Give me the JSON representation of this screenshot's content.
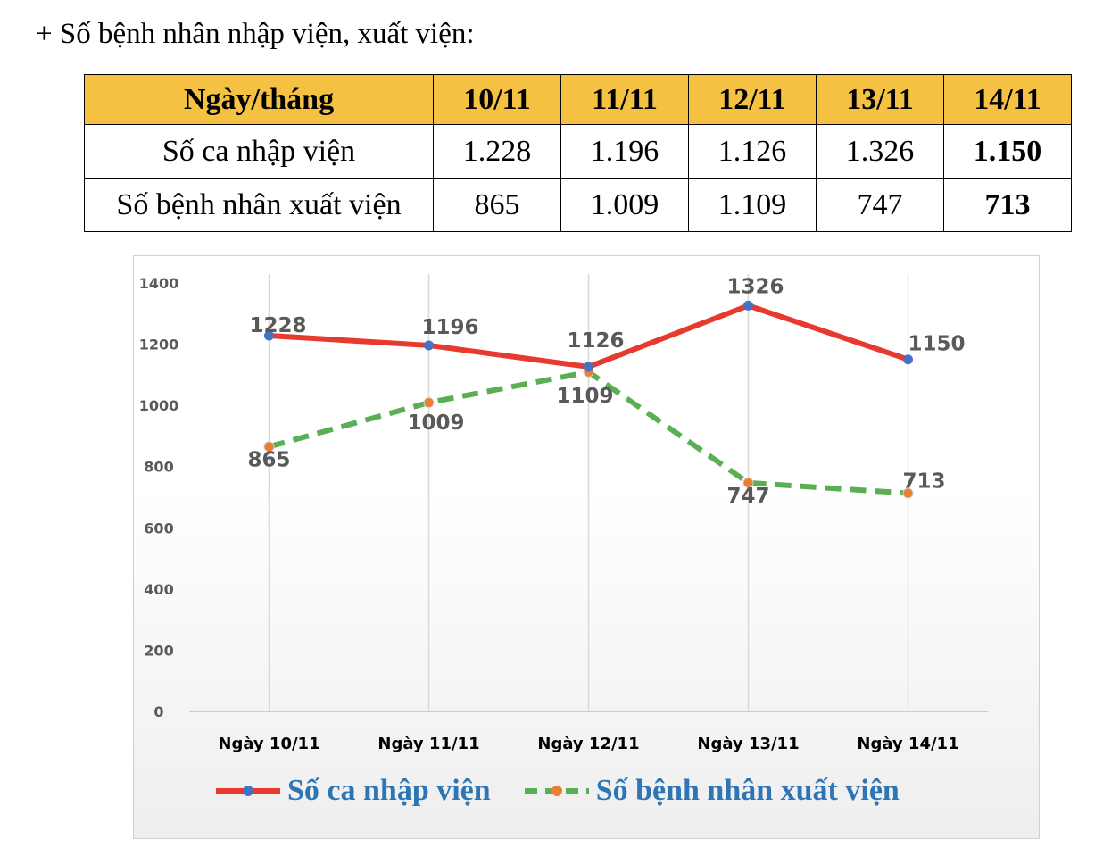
{
  "heading": "+ Số bệnh nhân nhập viện, xuất viện:",
  "table": {
    "header": [
      "Ngày/tháng",
      "10/11",
      "11/11",
      "12/11",
      "13/11",
      "14/11"
    ],
    "rows": [
      {
        "label": "Số ca nhập viện",
        "values": [
          "1.228",
          "1.196",
          "1.126",
          "1.326",
          "1.150"
        ]
      },
      {
        "label": "Số bệnh nhân xuất viện",
        "values": [
          "865",
          "1.009",
          "1.109",
          "747",
          "713"
        ]
      }
    ]
  },
  "colors": {
    "header_bg": "#f4c143",
    "series1": "#e8392e",
    "series2": "#5aaf55",
    "marker1": "#4472c4",
    "marker2": "#ed7d31",
    "legend_text": "#2e75b6",
    "label_text": "#595959"
  },
  "chart_data": {
    "type": "line",
    "categories": [
      "Ngày 10/11",
      "Ngày 11/11",
      "Ngày 12/11",
      "Ngày 13/11",
      "Ngày 14/11"
    ],
    "series": [
      {
        "name": "Số ca nhập viện",
        "values": [
          1228,
          1196,
          1126,
          1326,
          1150
        ],
        "style": "solid"
      },
      {
        "name": "Số bệnh nhân xuất viện",
        "values": [
          865,
          1009,
          1109,
          747,
          713
        ],
        "style": "dashed"
      }
    ],
    "yticks": [
      "0",
      "200",
      "400",
      "600",
      "800",
      "1000",
      "1200",
      "1400"
    ],
    "ylim": [
      0,
      1400
    ],
    "grid": "vertical",
    "legend": "bottom"
  }
}
